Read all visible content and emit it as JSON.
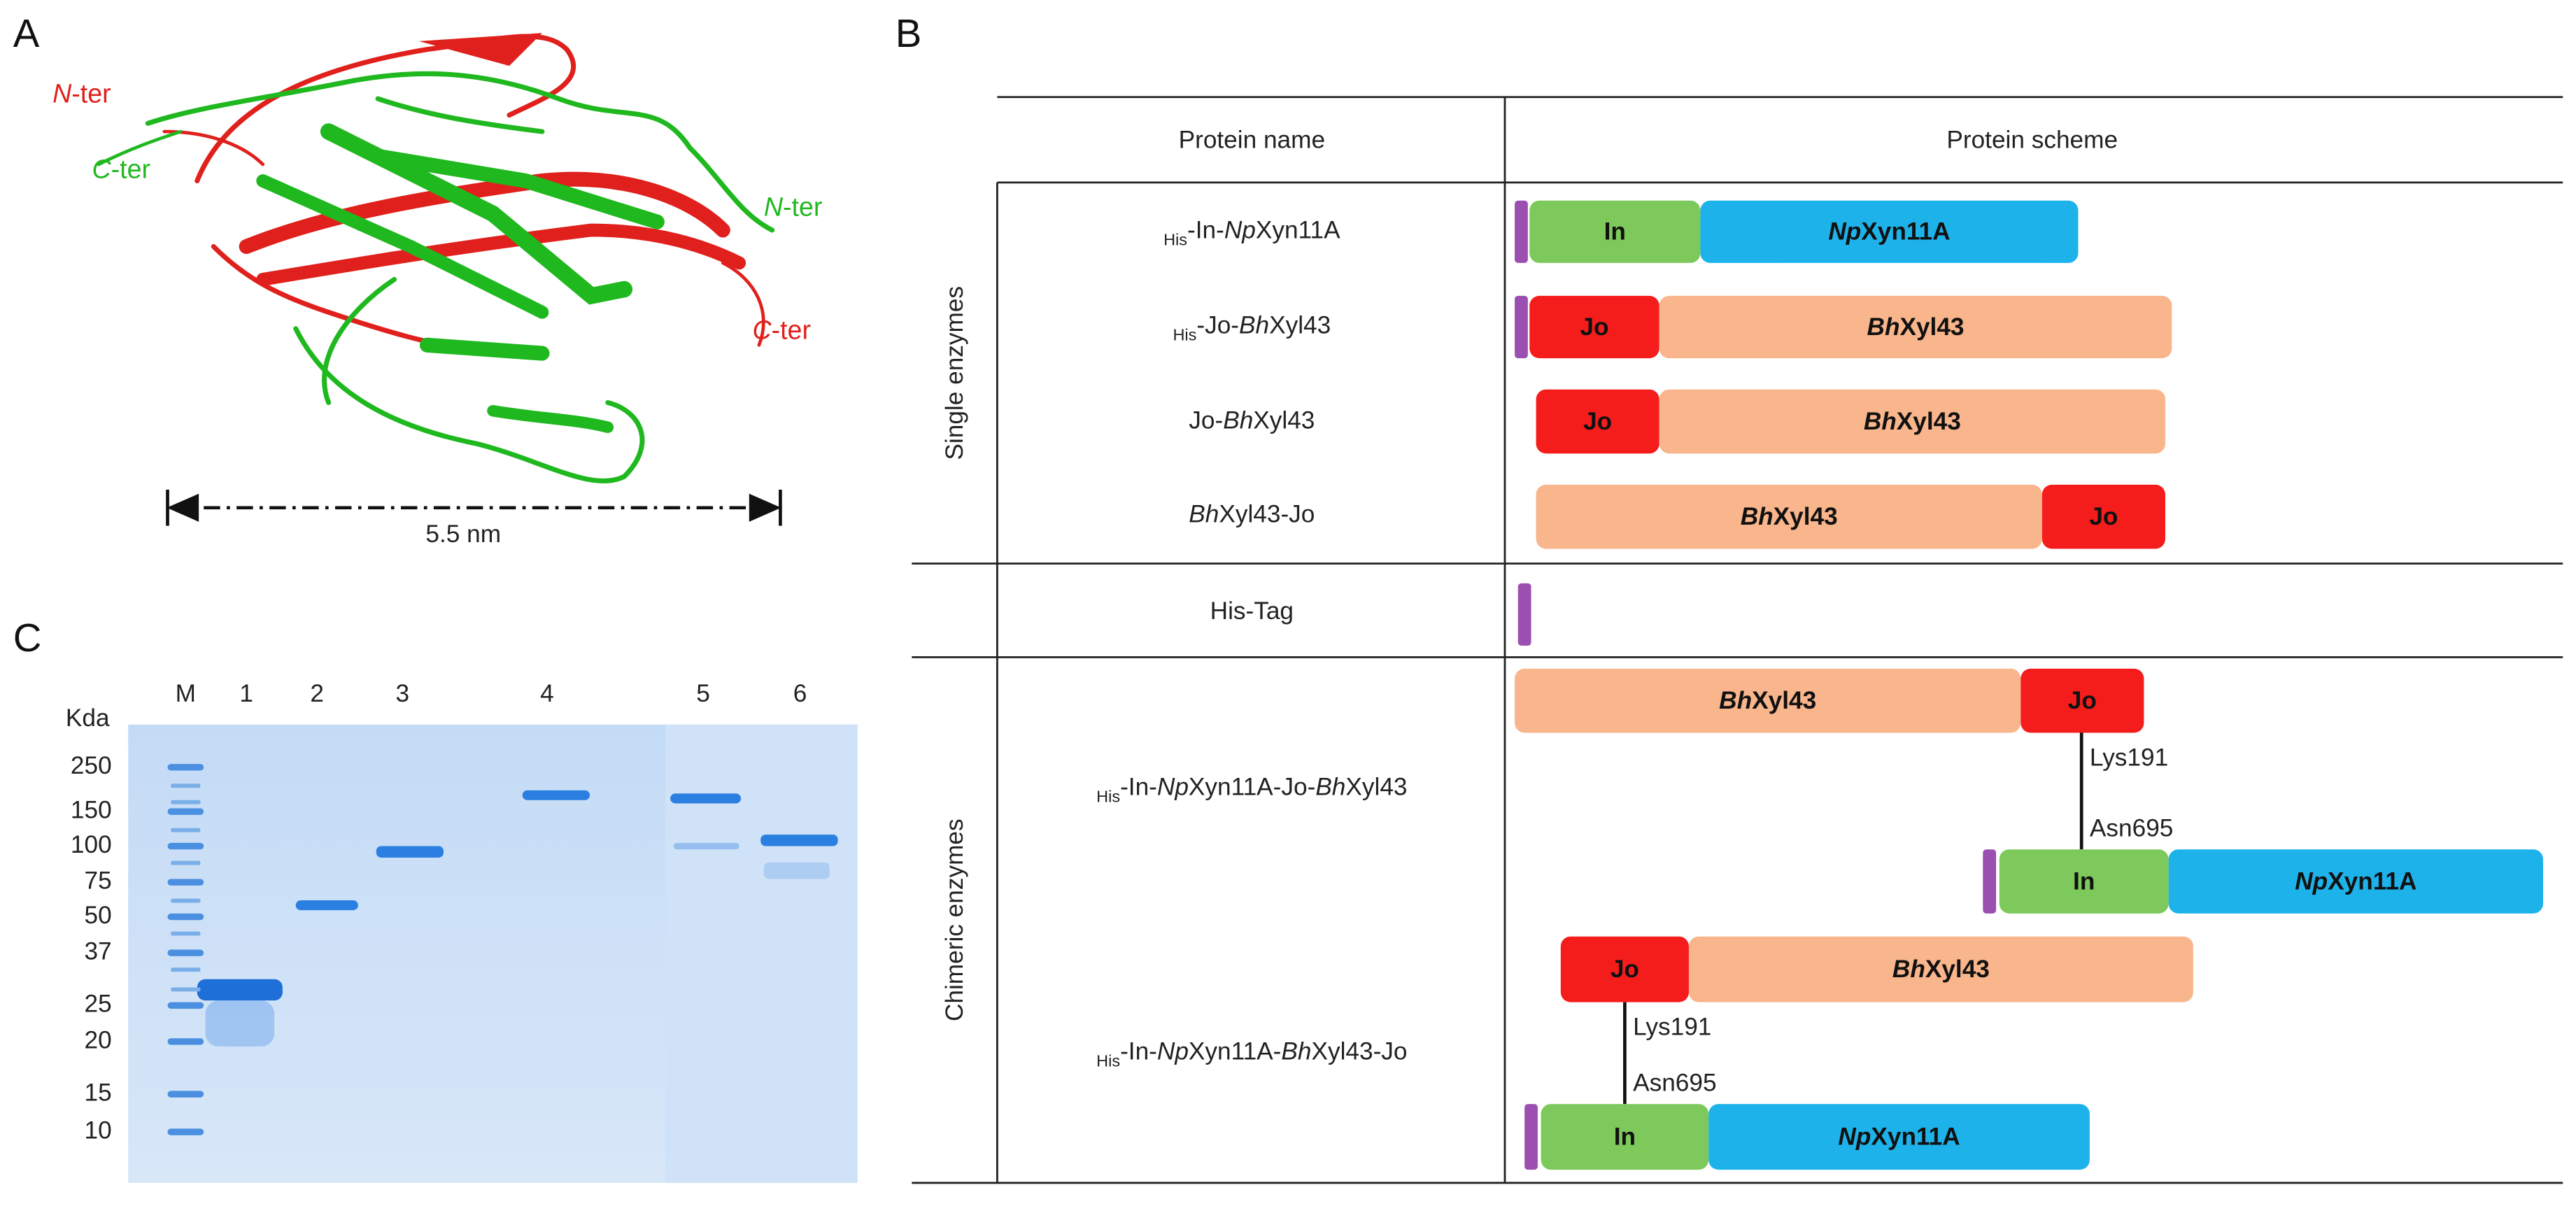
{
  "panel_a": {
    "label": "A",
    "n_ter_red": [
      {
        "text": "N",
        "style": "italic"
      },
      {
        "text": "-ter"
      }
    ],
    "c_ter_green": [
      {
        "text": "C",
        "style": "italic"
      },
      {
        "text": "-ter"
      }
    ],
    "n_ter_green": [
      {
        "text": "N",
        "style": "italic"
      },
      {
        "text": "-ter"
      }
    ],
    "c_ter_red": [
      {
        "text": "C",
        "style": "italic"
      },
      {
        "text": "-ter"
      }
    ],
    "scale": "5.5 nm"
  },
  "panel_b": {
    "label": "B",
    "headers": [
      "Protein name",
      "Protein scheme"
    ],
    "domains": {
      "his": {
        "color": "#9b4fb0"
      },
      "in": {
        "color": "#7dc95b",
        "label": [
          {
            "text": "In",
            "style": "bold"
          }
        ]
      },
      "np": {
        "color": "#1db3ea",
        "label": [
          {
            "text": "Np",
            "style": "bold-italic"
          },
          {
            "text": "Xyn11A",
            "style": "bold"
          }
        ]
      },
      "jo": {
        "color": "#f51c1c",
        "label": [
          {
            "text": "Jo",
            "style": "bold"
          }
        ]
      },
      "bh": {
        "color": "#f9b58b",
        "label": [
          {
            "text": "Bh",
            "style": "bold-italic"
          },
          {
            "text": "Xyl43",
            "style": "bold"
          }
        ]
      }
    },
    "groups": [
      {
        "label": "Single enzymes",
        "rows": [
          {
            "name": [
              {
                "text": "His",
                "style": "sub"
              },
              {
                "text": "-In-"
              },
              {
                "text": "Np",
                "style": "italic"
              },
              {
                "text": "Xyn11A"
              }
            ],
            "scheme": [
              "his",
              "in",
              "np"
            ]
          },
          {
            "name": [
              {
                "text": "His",
                "style": "sub"
              },
              {
                "text": "-Jo-"
              },
              {
                "text": "Bh",
                "style": "italic"
              },
              {
                "text": "Xyl43"
              }
            ],
            "scheme": [
              "his",
              "jo",
              "bh"
            ]
          },
          {
            "name": [
              {
                "text": "Jo-"
              },
              {
                "text": "Bh",
                "style": "italic"
              },
              {
                "text": "Xyl43"
              }
            ],
            "scheme": [
              "jo",
              "bh"
            ]
          },
          {
            "name": [
              {
                "text": "Bh",
                "style": "italic"
              },
              {
                "text": "Xyl43-Jo"
              }
            ],
            "scheme": [
              "bh",
              "jo"
            ]
          }
        ]
      },
      {
        "rows": [
          {
            "name": [
              {
                "text": "His-Tag"
              }
            ],
            "scheme": [
              "his"
            ]
          }
        ]
      },
      {
        "label": "Chimeric enzymes",
        "rows": [
          {
            "name": [
              {
                "text": "His",
                "style": "sub"
              },
              {
                "text": "-In-"
              },
              {
                "text": "Np",
                "style": "italic"
              },
              {
                "text": "Xyn11A-Jo-"
              },
              {
                "text": "Bh",
                "style": "italic"
              },
              {
                "text": "Xyl43"
              }
            ],
            "top": [
              "bh",
              "jo"
            ],
            "bottom": [
              "his",
              "in",
              "np"
            ],
            "link": [
              "Lys191",
              "Asn695"
            ]
          },
          {
            "name": [
              {
                "text": "His",
                "style": "sub"
              },
              {
                "text": "-In-"
              },
              {
                "text": "Np",
                "style": "italic"
              },
              {
                "text": "Xyn11A-"
              },
              {
                "text": "Bh",
                "style": "italic"
              },
              {
                "text": "Xyl43-Jo"
              }
            ],
            "top": [
              "jo",
              "bh"
            ],
            "bottom": [
              "his",
              "in",
              "np"
            ],
            "link": [
              "Lys191",
              "Asn695"
            ]
          }
        ]
      }
    ]
  },
  "panel_c": {
    "label": "C",
    "unit": "Kda",
    "lanes": [
      "M",
      "1",
      "2",
      "3",
      "4",
      "5",
      "6"
    ],
    "markers": [
      250,
      150,
      100,
      75,
      50,
      37,
      25,
      20,
      15,
      10
    ]
  }
}
